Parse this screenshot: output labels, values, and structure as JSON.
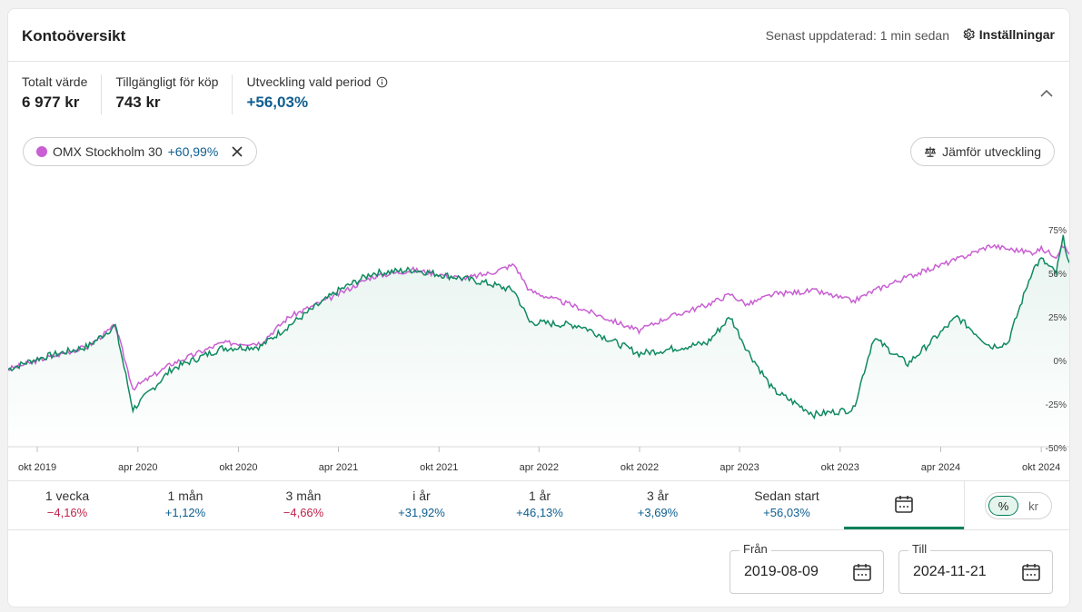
{
  "header": {
    "title": "Kontoöversikt",
    "updated": "Senast uppdaterad: 1 min sedan",
    "settings_label": "Inställningar"
  },
  "stats": {
    "total_label": "Totalt värde",
    "total_value": "6 977 kr",
    "available_label": "Tillgängligt för köp",
    "available_value": "743 kr",
    "development_label": "Utveckling vald period",
    "development_value": "+56,03%"
  },
  "compare_chip": {
    "name": "OMX Stockholm 30",
    "change": "+60,99%"
  },
  "compare_button": "Jämför utveckling",
  "colors": {
    "portfolio": "#0f8a5f",
    "index": "#c95fd3",
    "accent": "#00805a",
    "negative": "#c0234a",
    "positive": "#0e5e8f"
  },
  "chart_data": {
    "type": "line",
    "x_ticks": [
      "okt 2019",
      "apr 2020",
      "okt 2020",
      "apr 2021",
      "okt 2021",
      "apr 2022",
      "okt 2022",
      "apr 2023",
      "okt 2023",
      "apr 2024",
      "okt 2024"
    ],
    "y_ticks": [
      "75%",
      "50%",
      "25%",
      "0%",
      "-25%",
      "-50%"
    ],
    "ylim": [
      -50,
      75
    ],
    "xlim": [
      "2019-08-09",
      "2024-11-21"
    ],
    "series": [
      {
        "name": "",
        "x": [
          "2019-08-09",
          "2019-10-01",
          "2020-01-01",
          "2020-02-20",
          "2020-03-23",
          "2020-06-01",
          "2020-09-01",
          "2020-11-10",
          "2021-01-01",
          "2021-04-01",
          "2021-06-01",
          "2021-08-15",
          "2021-11-15",
          "2022-01-01",
          "2022-02-15",
          "2022-03-15",
          "2022-06-15",
          "2022-09-30",
          "2022-11-15",
          "2023-02-01",
          "2023-03-15",
          "2023-04-15",
          "2023-06-01",
          "2023-08-15",
          "2023-10-25",
          "2023-12-01",
          "2024-02-01",
          "2024-05-01",
          "2024-07-01",
          "2024-08-01",
          "2024-09-15",
          "2024-10-01",
          "2024-10-28",
          "2024-11-10",
          "2024-11-21"
        ],
        "values": [
          -5,
          1,
          8,
          20,
          -28,
          -5,
          7,
          8,
          20,
          40,
          50,
          52,
          47,
          44,
          40,
          22,
          20,
          4,
          6,
          10,
          25,
          6,
          -17,
          -31,
          -28,
          13,
          -2,
          25,
          8,
          10,
          52,
          58,
          50,
          70,
          56
        ]
      },
      {
        "name": "OMX Stockholm 30",
        "x": [
          "2019-08-09",
          "2019-10-01",
          "2020-01-01",
          "2020-02-20",
          "2020-03-23",
          "2020-06-01",
          "2020-09-01",
          "2020-11-10",
          "2021-01-01",
          "2021-04-01",
          "2021-06-01",
          "2021-08-15",
          "2021-11-15",
          "2022-01-01",
          "2022-02-15",
          "2022-03-15",
          "2022-06-15",
          "2022-09-30",
          "2022-11-15",
          "2023-02-01",
          "2023-03-15",
          "2023-04-15",
          "2023-06-01",
          "2023-08-15",
          "2023-10-25",
          "2023-12-01",
          "2024-02-01",
          "2024-05-01",
          "2024-07-01",
          "2024-08-01",
          "2024-09-15",
          "2024-10-01",
          "2024-10-28",
          "2024-11-10",
          "2024-11-21"
        ],
        "values": [
          -5,
          0,
          8,
          20,
          -16,
          -2,
          10,
          10,
          25,
          38,
          48,
          52,
          47,
          50,
          55,
          40,
          30,
          17,
          24,
          32,
          38,
          32,
          38,
          40,
          34,
          40,
          48,
          58,
          66,
          64,
          62,
          64,
          60,
          66,
          61
        ]
      }
    ],
    "grid": false,
    "legend": "top-left"
  },
  "periods": [
    {
      "label": "1 vecka",
      "value": "−4,16%",
      "sign": "neg"
    },
    {
      "label": "1 mån",
      "value": "+1,12%",
      "sign": "pos"
    },
    {
      "label": "3 mån",
      "value": "−4,66%",
      "sign": "neg"
    },
    {
      "label": "i år",
      "value": "+31,92%",
      "sign": "pos"
    },
    {
      "label": "1 år",
      "value": "+46,13%",
      "sign": "pos"
    },
    {
      "label": "3 år",
      "value": "+3,69%",
      "sign": "pos"
    },
    {
      "label": "Sedan start",
      "value": "+56,03%",
      "sign": "pos"
    }
  ],
  "toggle": {
    "percent": "%",
    "currency": "kr"
  },
  "date_from": {
    "label": "Från",
    "value": "2019-08-09"
  },
  "date_to": {
    "label": "Till",
    "value": "2024-11-21"
  }
}
